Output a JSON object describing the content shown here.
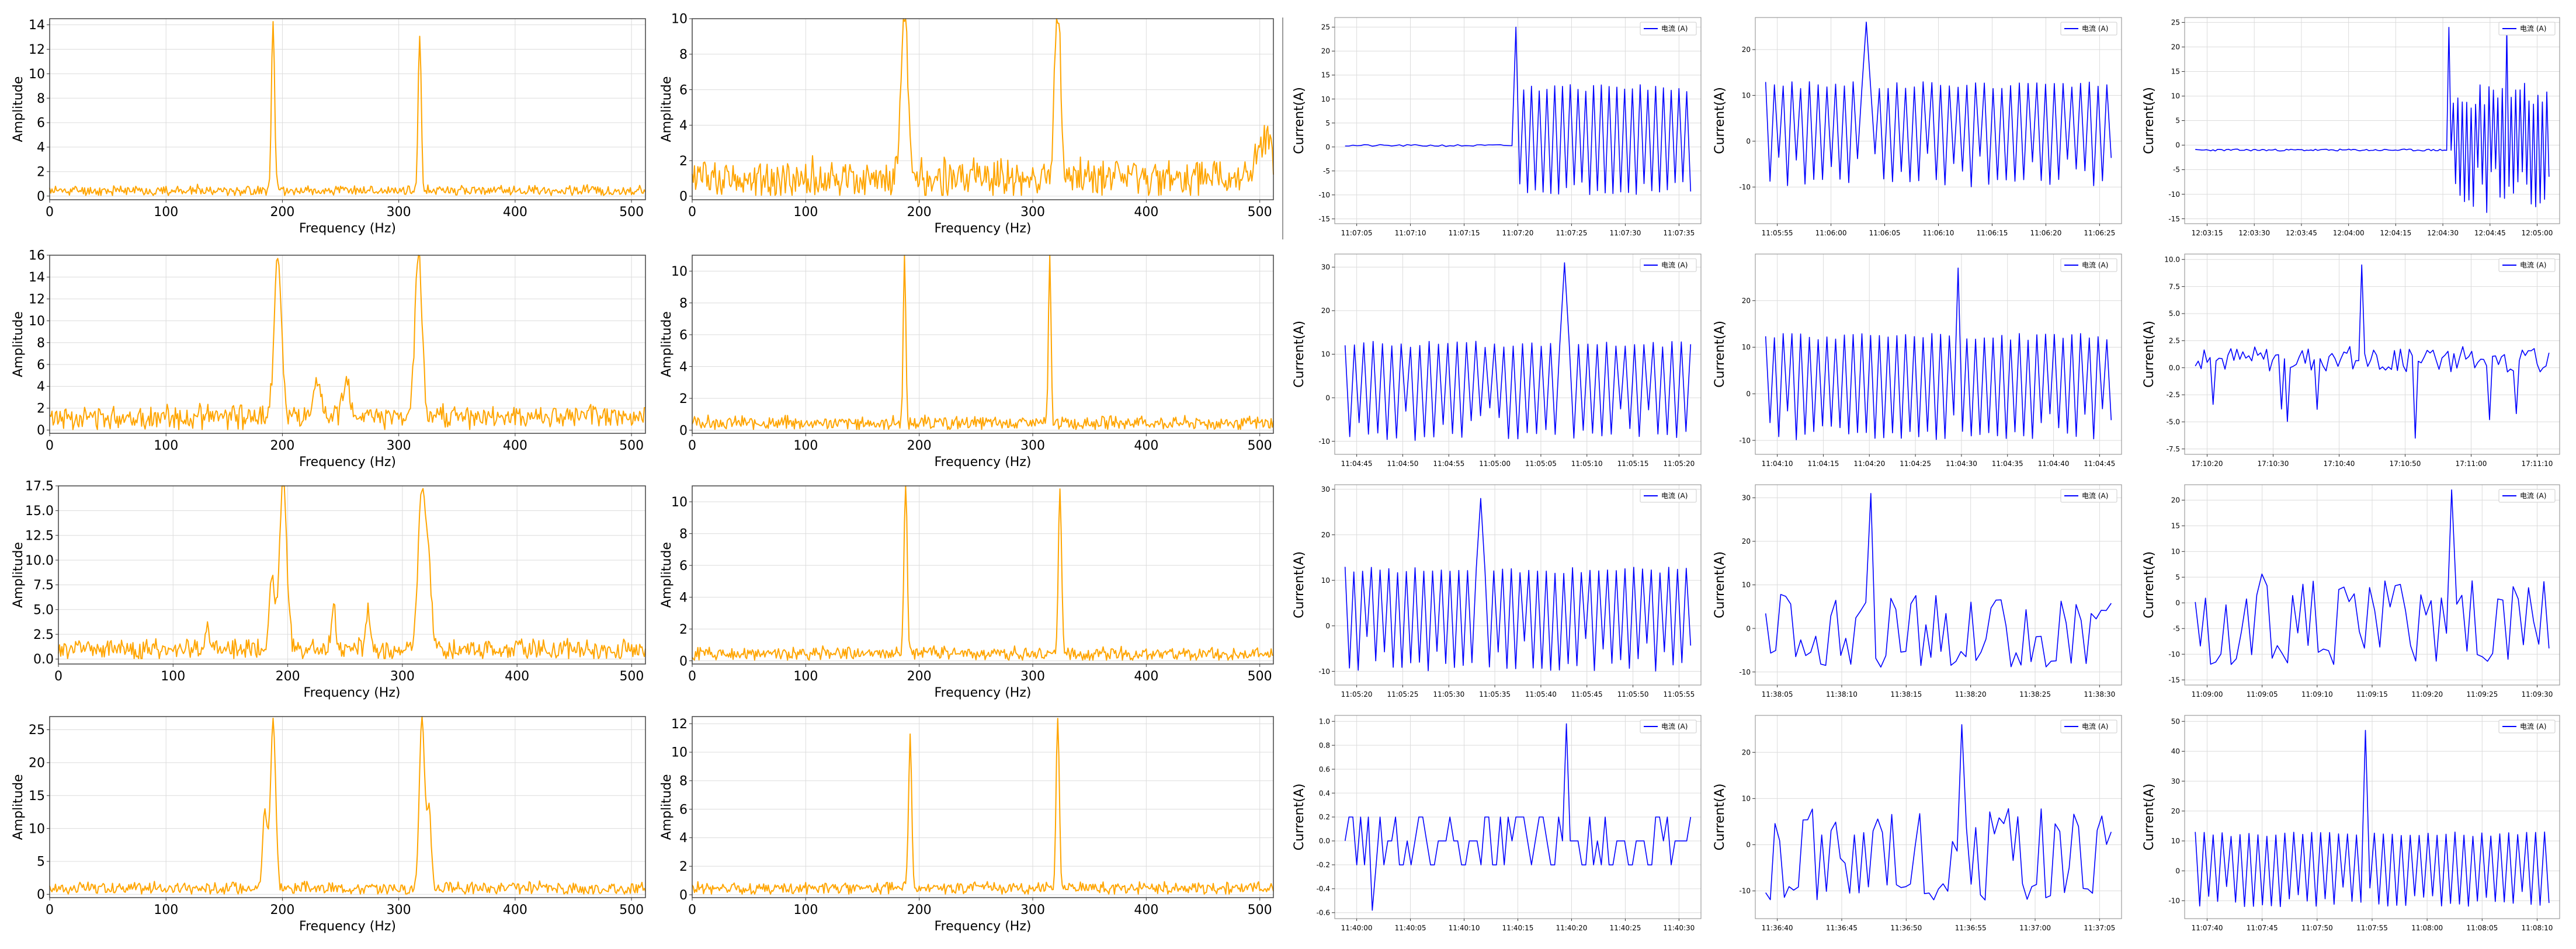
{
  "chart_data": [
    {
      "id": "fft-r1c1",
      "type": "line",
      "color": "#ffa500",
      "xlabel": "Frequency (Hz)",
      "ylabel": "Amplitude",
      "xlim": [
        0,
        512
      ],
      "ylim": [
        -0.3,
        14.5
      ],
      "xticks": [
        0,
        100,
        200,
        300,
        400,
        500
      ],
      "yticks": [
        0,
        2,
        4,
        6,
        8,
        10,
        12,
        14
      ],
      "grid": true,
      "noise": {
        "base": 0.45,
        "amp": 0.35,
        "seed": 11
      },
      "peaks": [
        {
          "x": 192,
          "y": 14.0,
          "w": 1.3
        },
        {
          "x": 318,
          "y": 12.9,
          "w": 1.3
        }
      ]
    },
    {
      "id": "fft-r1c2",
      "type": "line",
      "color": "#ffa500",
      "xlabel": "Frequency (Hz)",
      "ylabel": "Amplitude",
      "xlim": [
        0,
        512
      ],
      "ylim": [
        -0.2,
        10
      ],
      "xticks": [
        0,
        100,
        200,
        300,
        400,
        500
      ],
      "yticks": [
        0,
        2,
        4,
        6,
        8,
        10
      ],
      "grid": true,
      "noise": {
        "base": 1.0,
        "amp": 0.9,
        "seed": 12
      },
      "peaks": [
        {
          "x": 187,
          "y": 9.8,
          "w": 2.8
        },
        {
          "x": 322,
          "y": 9.7,
          "w": 2.8
        },
        {
          "x": 505,
          "y": 2.3,
          "w": 6
        }
      ]
    },
    {
      "id": "fft-r2c1",
      "type": "line",
      "color": "#ffa500",
      "xlabel": "Frequency (Hz)",
      "ylabel": "Amplitude",
      "xlim": [
        0,
        512
      ],
      "ylim": [
        -0.3,
        16
      ],
      "xticks": [
        0,
        100,
        200,
        300,
        400,
        500
      ],
      "yticks": [
        0,
        2,
        4,
        6,
        8,
        10,
        12,
        14,
        16
      ],
      "grid": true,
      "noise": {
        "base": 1.2,
        "amp": 0.9,
        "seed": 13
      },
      "peaks": [
        {
          "x": 196,
          "y": 15.2,
          "w": 3
        },
        {
          "x": 317,
          "y": 15.0,
          "w": 3
        },
        {
          "x": 255,
          "y": 3.6,
          "w": 3
        },
        {
          "x": 230,
          "y": 2.7,
          "w": 3
        }
      ]
    },
    {
      "id": "fft-r2c2",
      "type": "line",
      "color": "#ffa500",
      "xlabel": "Frequency (Hz)",
      "ylabel": "Amplitude",
      "xlim": [
        0,
        512
      ],
      "ylim": [
        -0.2,
        11
      ],
      "xticks": [
        0,
        100,
        200,
        300,
        400,
        500
      ],
      "yticks": [
        0,
        2,
        4,
        6,
        8,
        10
      ],
      "grid": true,
      "noise": {
        "base": 0.45,
        "amp": 0.35,
        "seed": 14
      },
      "peaks": [
        {
          "x": 187,
          "y": 10.7,
          "w": 1.1
        },
        {
          "x": 315,
          "y": 10.5,
          "w": 1.1
        }
      ]
    },
    {
      "id": "fft-r3c1",
      "type": "line",
      "color": "#ffa500",
      "xlabel": "Frequency (Hz)",
      "ylabel": "Amplitude",
      "xlim": [
        0,
        512
      ],
      "ylim": [
        -0.5,
        17.5
      ],
      "xticks": [
        0,
        100,
        200,
        300,
        400,
        500
      ],
      "yticks": [
        0,
        2.5,
        5,
        7.5,
        10,
        12.5,
        15,
        17.5
      ],
      "ytick_labels": [
        "0.0",
        "2.5",
        "5.0",
        "7.5",
        "10.0",
        "12.5",
        "15.0",
        "17.5"
      ],
      "grid": true,
      "noise": {
        "base": 1.0,
        "amp": 0.9,
        "seed": 15
      },
      "peaks": [
        {
          "x": 196,
          "y": 16.5,
          "w": 3.2
        },
        {
          "x": 317,
          "y": 16.2,
          "w": 3.2
        },
        {
          "x": 186,
          "y": 6.5,
          "w": 2.5
        },
        {
          "x": 323,
          "y": 7.0,
          "w": 2.5
        },
        {
          "x": 240,
          "y": 4.5,
          "w": 2
        },
        {
          "x": 270,
          "y": 4.3,
          "w": 2
        },
        {
          "x": 130,
          "y": 2.5,
          "w": 2
        }
      ]
    },
    {
      "id": "fft-r3c2",
      "type": "line",
      "color": "#ffa500",
      "xlabel": "Frequency (Hz)",
      "ylabel": "Amplitude",
      "xlim": [
        0,
        512
      ],
      "ylim": [
        -0.2,
        11
      ],
      "xticks": [
        0,
        100,
        200,
        300,
        400,
        500
      ],
      "yticks": [
        0,
        2,
        4,
        6,
        8,
        10
      ],
      "grid": true,
      "noise": {
        "base": 0.45,
        "amp": 0.35,
        "seed": 16
      },
      "peaks": [
        {
          "x": 188,
          "y": 10.8,
          "w": 1.4
        },
        {
          "x": 324,
          "y": 10.4,
          "w": 1.4
        }
      ]
    },
    {
      "id": "fft-r4c1",
      "type": "line",
      "color": "#ffa500",
      "xlabel": "Frequency (Hz)",
      "ylabel": "Amplitude",
      "xlim": [
        0,
        512
      ],
      "ylim": [
        -0.5,
        27
      ],
      "xticks": [
        0,
        100,
        200,
        300,
        400,
        500
      ],
      "yticks": [
        0,
        5,
        10,
        15,
        20,
        25
      ],
      "grid": true,
      "noise": {
        "base": 0.9,
        "amp": 0.8,
        "seed": 17
      },
      "peaks": [
        {
          "x": 192,
          "y": 26,
          "w": 2.2
        },
        {
          "x": 320,
          "y": 26,
          "w": 2.2
        },
        {
          "x": 185,
          "y": 12,
          "w": 2
        },
        {
          "x": 326,
          "y": 12,
          "w": 2
        }
      ]
    },
    {
      "id": "fft-r4c2",
      "type": "line",
      "color": "#ffa500",
      "xlabel": "Frequency (Hz)",
      "ylabel": "Amplitude",
      "xlim": [
        0,
        512
      ],
      "ylim": [
        -0.2,
        12.5
      ],
      "xticks": [
        0,
        100,
        200,
        300,
        400,
        500
      ],
      "yticks": [
        0,
        2,
        4,
        6,
        8,
        10,
        12
      ],
      "grid": true,
      "noise": {
        "base": 0.45,
        "amp": 0.35,
        "seed": 18
      },
      "peaks": [
        {
          "x": 192,
          "y": 10.4,
          "w": 1.4
        },
        {
          "x": 322,
          "y": 12.1,
          "w": 1.4
        }
      ]
    },
    {
      "id": "ts-r1c3",
      "type": "line",
      "color": "#0000ff",
      "ylabel": "Current(A)",
      "legend": "电流 (A)",
      "legend_position": "top-right",
      "ylim": [
        -16,
        27
      ],
      "yticks": [
        -15,
        -10,
        -5,
        0,
        5,
        10,
        15,
        20,
        25
      ],
      "xtick_labels": [
        "11:07:05",
        "11:07:10",
        "11:07:15",
        "11:07:20",
        "11:07:25",
        "11:07:30",
        "11:07:35"
      ],
      "grid": true,
      "pattern": {
        "kind": "flat-then-oscillate",
        "switch": 0.5,
        "flat": 0.3,
        "hi": 13,
        "lo": -10,
        "spike": 25,
        "n": 90,
        "seed": 21
      }
    },
    {
      "id": "ts-r1c4",
      "type": "line",
      "color": "#0000ff",
      "ylabel": "Current(A)",
      "legend": "电流 (A)",
      "legend_position": "top-right",
      "ylim": [
        -18,
        27
      ],
      "yticks": [
        -10,
        0,
        10,
        20
      ],
      "xtick_labels": [
        "11:05:55",
        "11:06:00",
        "11:06:05",
        "11:06:10",
        "11:06:15",
        "11:06:20",
        "11:06:25"
      ],
      "grid": true,
      "pattern": {
        "kind": "oscillate",
        "hi": 13,
        "lo": -10,
        "spike": 26,
        "n": 80,
        "seed": 22
      }
    },
    {
      "id": "ts-r1c5",
      "type": "line",
      "color": "#0000ff",
      "ylabel": "Current(A)",
      "legend": "电流 (A)",
      "legend_position": "top-right",
      "ylim": [
        -16,
        26
      ],
      "yticks": [
        -15,
        -10,
        -5,
        0,
        5,
        10,
        15,
        20,
        25
      ],
      "xtick_labels": [
        "12:03:15",
        "12:03:30",
        "12:03:45",
        "12:04:00",
        "12:04:15",
        "12:04:30",
        "12:04:45",
        "12:05:00"
      ],
      "grid": true,
      "pattern": {
        "kind": "flat-then-dense",
        "switch": 0.72,
        "flat": -1,
        "hi": 13,
        "lo": -14,
        "spike": 24,
        "n": 160,
        "seed": 23
      }
    },
    {
      "id": "ts-r2c3",
      "type": "line",
      "color": "#0000ff",
      "ylabel": "Current(A)",
      "legend": "电流 (A)",
      "legend_position": "top-right",
      "ylim": [
        -13,
        33
      ],
      "yticks": [
        -10,
        0,
        10,
        20,
        30
      ],
      "xtick_labels": [
        "11:04:45",
        "11:04:50",
        "11:04:55",
        "11:05:00",
        "11:05:05",
        "11:05:10",
        "11:05:15",
        "11:05:20"
      ],
      "grid": true,
      "pattern": {
        "kind": "oscillate",
        "hi": 13,
        "lo": -10,
        "spike": 31,
        "n": 75,
        "seed": 24
      }
    },
    {
      "id": "ts-r2c4",
      "type": "line",
      "color": "#0000ff",
      "ylabel": "Current(A)",
      "legend": "电流 (A)",
      "legend_position": "top-right",
      "ylim": [
        -13,
        30
      ],
      "yticks": [
        -10,
        0,
        10,
        20
      ],
      "xtick_labels": [
        "11:04:10",
        "11:04:15",
        "11:04:20",
        "11:04:25",
        "11:04:30",
        "11:04:35",
        "11:04:40",
        "11:04:45"
      ],
      "grid": true,
      "pattern": {
        "kind": "oscillate",
        "hi": 13,
        "lo": -10,
        "spike": 27,
        "n": 80,
        "seed": 25
      }
    },
    {
      "id": "ts-r2c5",
      "type": "line",
      "color": "#0000ff",
      "ylabel": "Current(A)",
      "legend": "电流 (A)",
      "legend_position": "top-right",
      "ylim": [
        -8,
        10.5
      ],
      "yticks": [
        -7.5,
        -5,
        -2.5,
        0,
        2.5,
        5,
        7.5,
        10
      ],
      "ytick_labels": [
        "-7.5",
        "-5.0",
        "-2.5",
        "0.0",
        "2.5",
        "5.0",
        "7.5",
        "10.0"
      ],
      "xtick_labels": [
        "17:10:20",
        "17:10:30",
        "17:10:40",
        "17:10:50",
        "17:11:00",
        "17:11:10"
      ],
      "grid": true,
      "pattern": {
        "kind": "noisy",
        "center": 0.8,
        "spread": 1.2,
        "spike": 9.5,
        "dip": -6.5,
        "n": 120,
        "seed": 26
      }
    },
    {
      "id": "ts-r3c3",
      "type": "line",
      "color": "#0000ff",
      "ylabel": "Current(A)",
      "legend": "电流 (A)",
      "legend_position": "top-right",
      "ylim": [
        -13,
        31
      ],
      "yticks": [
        -10,
        0,
        10,
        20,
        30
      ],
      "xtick_labels": [
        "11:05:20",
        "11:05:25",
        "11:05:30",
        "11:05:35",
        "11:05:40",
        "11:05:45",
        "11:05:50",
        "11:05:55"
      ],
      "grid": true,
      "pattern": {
        "kind": "oscillate",
        "hi": 13,
        "lo": -10,
        "spike": 28,
        "n": 80,
        "seed": 27
      }
    },
    {
      "id": "ts-r3c4",
      "type": "line",
      "color": "#0000ff",
      "ylabel": "Current(A)",
      "legend": "电流 (A)",
      "legend_position": "top-right",
      "ylim": [
        -13,
        33
      ],
      "yticks": [
        -10,
        0,
        10,
        20,
        30
      ],
      "xtick_labels": [
        "11:38:05",
        "11:38:10",
        "11:38:15",
        "11:38:20",
        "11:38:25",
        "11:38:30"
      ],
      "grid": true,
      "pattern": {
        "kind": "irregular",
        "hi": 8,
        "lo": -9,
        "spike": 31,
        "n": 70,
        "seed": 28
      }
    },
    {
      "id": "ts-r3c5",
      "type": "line",
      "color": "#0000ff",
      "ylabel": "Current(A)",
      "legend": "电流 (A)",
      "legend_position": "top-right",
      "ylim": [
        -16,
        23
      ],
      "yticks": [
        -15,
        -10,
        -5,
        0,
        5,
        10,
        15,
        20
      ],
      "xtick_labels": [
        "11:09:00",
        "11:09:05",
        "11:09:10",
        "11:09:15",
        "11:09:20",
        "11:09:25",
        "11:09:30"
      ],
      "grid": true,
      "pattern": {
        "kind": "irregular",
        "hi": 6,
        "lo": -12,
        "spike": 22,
        "n": 70,
        "seed": 29
      }
    },
    {
      "id": "ts-r4c3",
      "type": "line",
      "color": "#0000ff",
      "ylabel": "Current(A)",
      "legend": "电流 (A)",
      "legend_position": "top-right",
      "ylim": [
        -0.65,
        1.05
      ],
      "yticks": [
        -0.6,
        -0.4,
        -0.2,
        0,
        0.2,
        0.4,
        0.6,
        0.8,
        1.0
      ],
      "ytick_labels": [
        "-0.6",
        "-0.4",
        "-0.2",
        "0.0",
        "0.2",
        "0.4",
        "0.6",
        "0.8",
        "1.0"
      ],
      "xtick_labels": [
        "11:40:00",
        "11:40:05",
        "11:40:10",
        "11:40:15",
        "11:40:20",
        "11:40:25",
        "11:40:30"
      ],
      "grid": true,
      "pattern": {
        "kind": "levels",
        "levels": [
          0.2,
          0,
          -0.2
        ],
        "spike": 0.98,
        "dip": -0.58,
        "n": 90,
        "seed": 30
      }
    },
    {
      "id": "ts-r4c4",
      "type": "line",
      "color": "#0000ff",
      "ylabel": "Current(A)",
      "legend": "电流 (A)",
      "legend_position": "top-right",
      "ylim": [
        -16,
        28
      ],
      "yticks": [
        -10,
        0,
        10,
        20
      ],
      "xtick_labels": [
        "11:36:40",
        "11:36:45",
        "11:36:50",
        "11:36:55",
        "11:37:00",
        "11:37:05"
      ],
      "grid": true,
      "pattern": {
        "kind": "irregular",
        "hi": 8,
        "lo": -12,
        "spike": 26,
        "n": 75,
        "seed": 31
      }
    },
    {
      "id": "ts-r4c5",
      "type": "line",
      "color": "#0000ff",
      "ylabel": "Current(A)",
      "legend": "电流 (A)",
      "legend_position": "top-right",
      "ylim": [
        -16,
        52
      ],
      "yticks": [
        -10,
        0,
        10,
        20,
        30,
        40,
        50
      ],
      "xtick_labels": [
        "11:07:40",
        "11:07:45",
        "11:07:50",
        "11:07:55",
        "11:08:00",
        "11:08:05",
        "11:08:10"
      ],
      "grid": true,
      "pattern": {
        "kind": "oscillate",
        "hi": 13,
        "lo": -12,
        "spike": 47,
        "n": 80,
        "seed": 32
      }
    }
  ]
}
